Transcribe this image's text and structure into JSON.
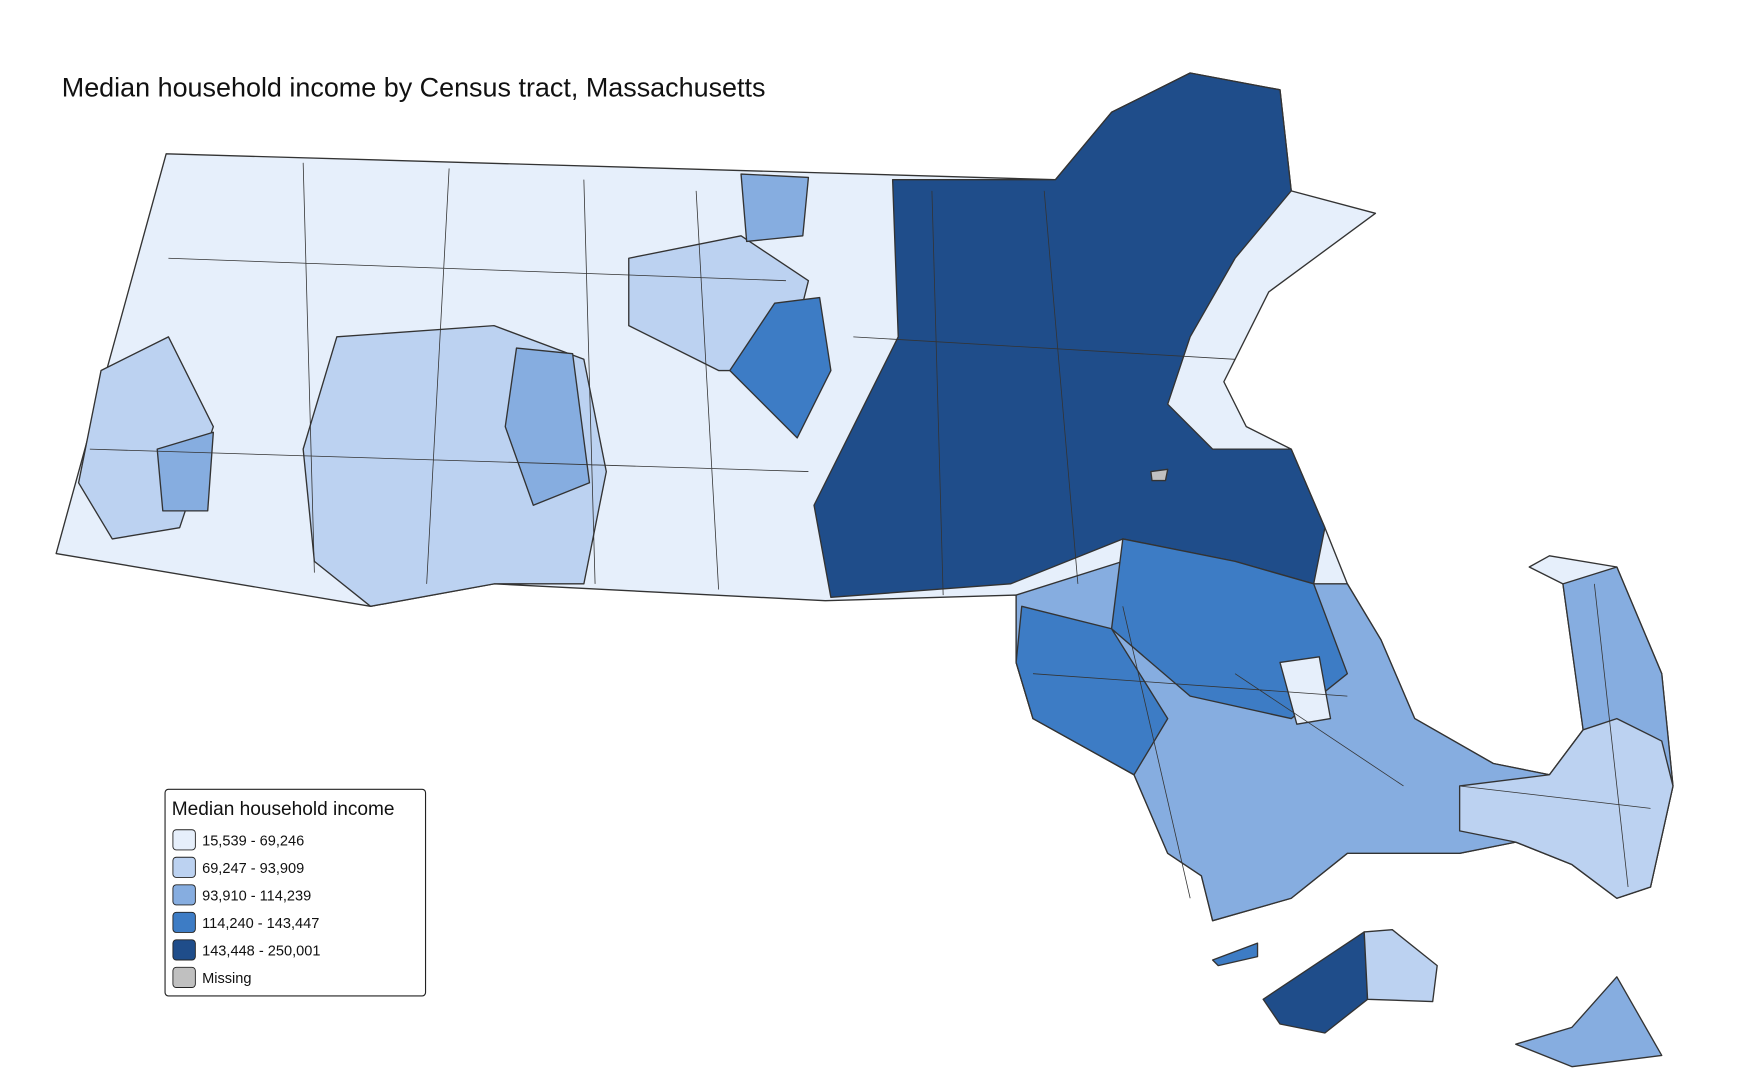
{
  "title": "Median household income by Census tract, Massachusetts",
  "legend": {
    "title": "Median household income",
    "items": [
      {
        "label": "15,539 - 69,246",
        "color": "#e6effb"
      },
      {
        "label": "69,247 - 93,909",
        "color": "#bcd2f1"
      },
      {
        "label": "93,910 - 114,239",
        "color": "#86ade0"
      },
      {
        "label": "114,240 - 143,447",
        "color": "#3d7cc5"
      },
      {
        "label": "143,448 - 250,001",
        "color": "#1f4d8a"
      },
      {
        "label": "Missing",
        "color": "#c0c0c0"
      }
    ]
  }
}
